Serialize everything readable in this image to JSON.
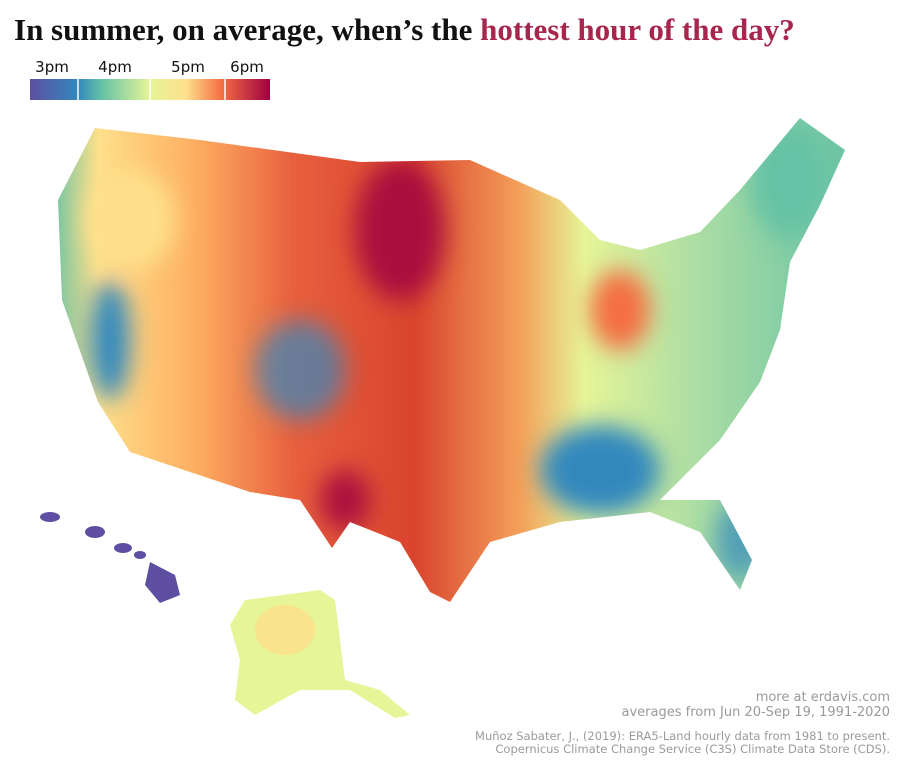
{
  "title": {
    "prefix": "In summer, on average, when’s the ",
    "highlight": "hottest hour of the day?"
  },
  "legend": {
    "labels": [
      "3pm",
      "4pm",
      "5pm",
      "6pm"
    ]
  },
  "credits": {
    "site": "more at erdavis.com",
    "period": "averages from Jun 20-Sep 19, 1991-2020",
    "source_1": "Muñoz Sabater, J., (2019): ERA5-Land hourly data from 1981 to present.",
    "source_2": "Copernicus Climate Change Service (C3S) Climate Data Store (CDS)."
  }
}
